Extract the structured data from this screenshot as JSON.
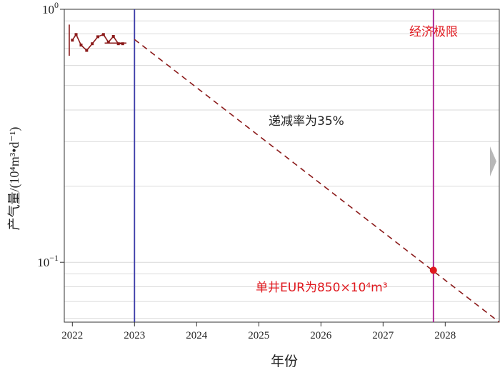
{
  "chart_data": {
    "type": "line",
    "xlabel": "年份",
    "ylabel": "产气量/(10⁴m³•d⁻¹)",
    "x_ticks": [
      "2022",
      "2023",
      "2024",
      "2025",
      "2026",
      "2027",
      "2028"
    ],
    "y_ticks": [
      {
        "value": 1,
        "label": "10",
        "exp": "0"
      },
      {
        "value": 0.1,
        "label": "10",
        "exp": "−1"
      }
    ],
    "xlim": [
      2021.87,
      2028.87
    ],
    "ylim": [
      0.058,
      1.0
    ],
    "yscale": "log",
    "grid": "horizontal",
    "series": [
      {
        "type": "history",
        "color": "#8b1a1a",
        "x": [
          2022.0,
          2022.06,
          2022.14,
          2022.23,
          2022.32,
          2022.41,
          2022.5,
          2022.58,
          2022.66,
          2022.74,
          2022.81
        ],
        "y": [
          0.755,
          0.795,
          0.722,
          0.688,
          0.731,
          0.779,
          0.795,
          0.742,
          0.781,
          0.731,
          0.731
        ]
      },
      {
        "type": "forecast",
        "style": "dashed",
        "color": "#8b1a1a",
        "x": [
          2023.0,
          2028.87
        ],
        "y": [
          0.76,
          0.058
        ]
      }
    ],
    "vlines": [
      {
        "x": 2023.0,
        "color": "#3b3ba8"
      },
      {
        "x": 2027.81,
        "color": "#a8198f",
        "label": "经济极限"
      }
    ],
    "marker": {
      "x": 2027.81,
      "y": 0.093,
      "color": "#e0191f"
    },
    "annotations": {
      "decline": "递减率为35%",
      "eur": "单井EUR为850×10⁴m³"
    },
    "colors": {
      "accent_red": "#e0191f",
      "data": "#8b1a1a",
      "divider": "#3b3ba8",
      "limit": "#a8198f"
    }
  }
}
